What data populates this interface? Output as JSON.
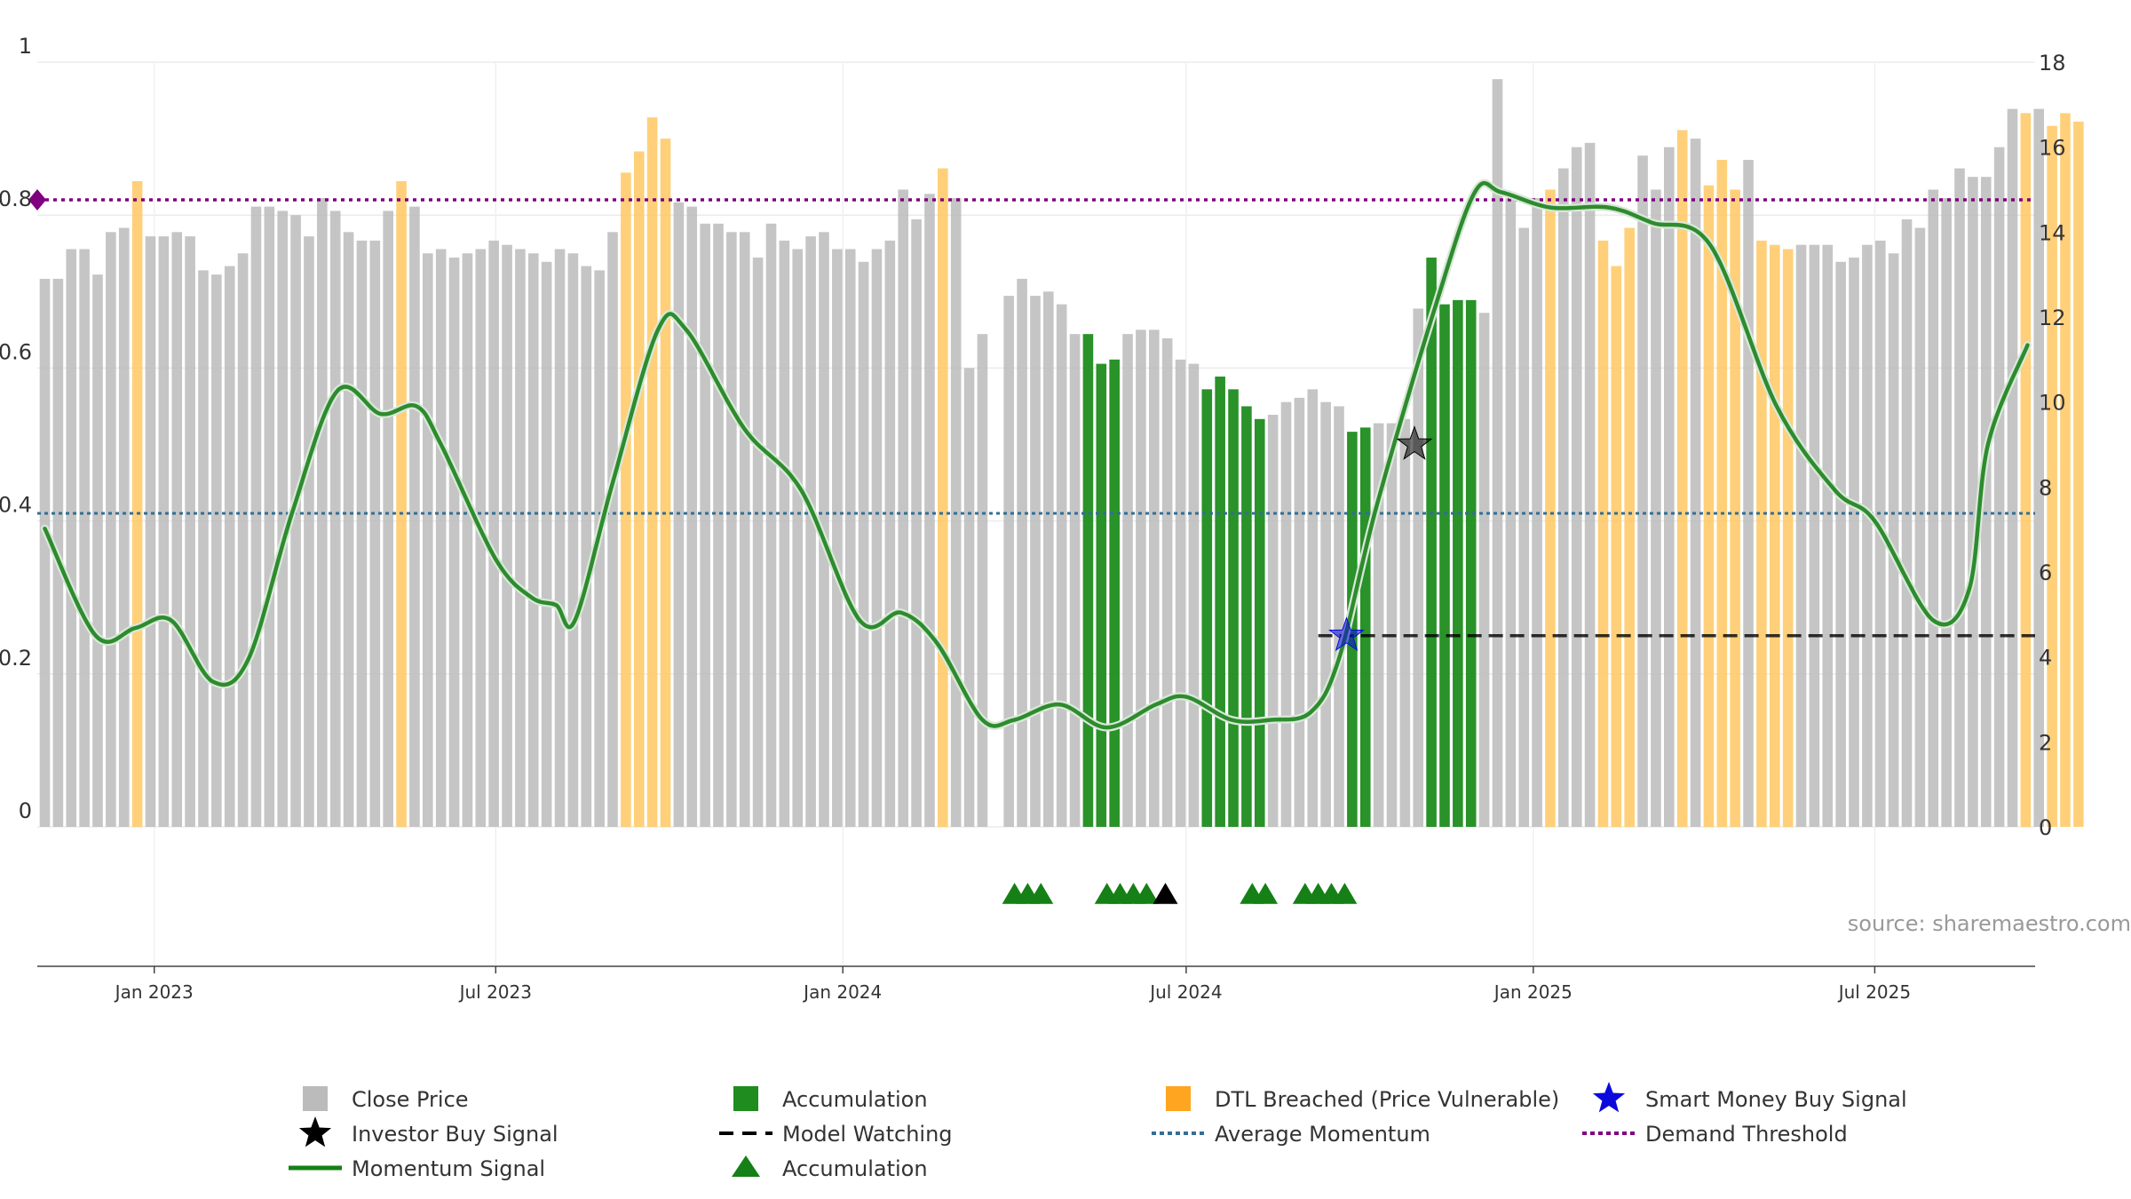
{
  "chart_data": {
    "type": "bar",
    "source": "source: sharemaestro.com",
    "left_axis": {
      "ticks": [
        0,
        0.2,
        0.4,
        0.6,
        0.8,
        1
      ],
      "tick_labels": [
        "0",
        "0.2",
        "0.4",
        "0.6",
        "0.8",
        "1"
      ],
      "ylim": [
        0,
        1
      ]
    },
    "right_axis": {
      "ticks": [
        0,
        2,
        4,
        6,
        8,
        10,
        12,
        14,
        16,
        18
      ],
      "tick_labels": [
        "0",
        "2",
        "4",
        "6",
        "8",
        "10",
        "12",
        "14",
        "16",
        "18"
      ],
      "ylim": [
        0,
        18
      ]
    },
    "x_axis": {
      "range": [
        "2022-10-31",
        "2025-09-24"
      ],
      "ticks": [
        "2023-01-01",
        "2023-07-01",
        "2024-01-01",
        "2024-07-01",
        "2025-01-01",
        "2025-07-01"
      ],
      "tick_labels": [
        "Jan 2023",
        "Jul 2023",
        "Jan 2024",
        "Jul 2024",
        "Jan 2025",
        "Jul 2025"
      ]
    },
    "grid": true,
    "legend_placement": "bottom",
    "legend": [
      {
        "label": "Close Price",
        "symbol": "square",
        "color": "#bbbbbb"
      },
      {
        "label": "Accumulation",
        "symbol": "square",
        "color": "#1e8c1e"
      },
      {
        "label": "DTL Breached (Price Vulnerable)",
        "symbol": "square",
        "color": "#ffa520"
      },
      {
        "label": "Smart Money Buy Signal",
        "symbol": "star",
        "color": "#0a0adc"
      },
      {
        "label": "Investor Buy Signal",
        "symbol": "star",
        "color": "#000000"
      },
      {
        "label": "Model Watching",
        "symbol": "dash",
        "color": "#000000"
      },
      {
        "label": "Average Momentum",
        "symbol": "dot",
        "color": "#336e96"
      },
      {
        "label": "Demand Threshold",
        "symbol": "dot",
        "color": "#800080"
      },
      {
        "label": "Momentum Signal",
        "symbol": "line",
        "color": "#158015"
      },
      {
        "label": "Accumulation",
        "symbol": "triangle",
        "color": "#158015"
      }
    ],
    "colors": {
      "close": "#bbbbbb",
      "accumulation": "#1e8c1e",
      "dtl": "#ffc862",
      "momentum": "#2e8b2e",
      "average": "#336e96",
      "threshold": "#800080",
      "watching": "#000000"
    },
    "price_bars": {
      "start_date": "2022-11-04",
      "interval_days": 7,
      "values": [
        12.9,
        12.9,
        13.6,
        13.6,
        13.0,
        14.0,
        14.1,
        15.2,
        13.9,
        13.9,
        14.0,
        13.9,
        13.1,
        13.0,
        13.2,
        13.5,
        14.6,
        14.6,
        14.5,
        14.4,
        13.9,
        14.8,
        14.5,
        14.0,
        13.8,
        13.8,
        14.5,
        15.2,
        14.6,
        13.5,
        13.6,
        13.4,
        13.5,
        13.6,
        13.8,
        13.7,
        13.6,
        13.5,
        13.3,
        13.6,
        13.5,
        13.2,
        13.1,
        14.0,
        15.4,
        15.9,
        16.7,
        16.2,
        14.7,
        14.6,
        14.2,
        14.2,
        14.0,
        14.0,
        13.4,
        14.2,
        13.8,
        13.6,
        13.9,
        14.0,
        13.6,
        13.6,
        13.3,
        13.6,
        13.8,
        15.0,
        14.3,
        14.9,
        15.5,
        14.8,
        10.8,
        11.6,
        0.0,
        12.5,
        12.9,
        12.5,
        12.6,
        12.3,
        11.6,
        11.6,
        10.9,
        11.0,
        11.6,
        11.7,
        11.7,
        11.5,
        11.0,
        10.9,
        10.3,
        10.6,
        10.3,
        9.9,
        9.6,
        9.7,
        10.0,
        10.1,
        10.3,
        10.0,
        9.9,
        9.3,
        9.4,
        9.5,
        9.5,
        9.6,
        12.2,
        13.4,
        12.3,
        12.4,
        12.4,
        12.1,
        17.6,
        14.8,
        14.1,
        14.8,
        15.0,
        15.5,
        16.0,
        16.1,
        13.8,
        13.2,
        14.1,
        15.8,
        15.0,
        16.0,
        16.4,
        16.2,
        15.1,
        15.7,
        15.0,
        15.7,
        13.8,
        13.7,
        13.6,
        13.7,
        13.7,
        13.7,
        13.3,
        13.4,
        13.7,
        13.8,
        13.5,
        14.3,
        14.1,
        15.0,
        14.8,
        15.5,
        15.3,
        15.3,
        16.0,
        16.9,
        16.8,
        16.9,
        16.5,
        16.8,
        16.6
      ],
      "highlight": [
        0,
        0,
        0,
        0,
        0,
        0,
        0,
        2,
        0,
        0,
        0,
        0,
        0,
        0,
        0,
        0,
        0,
        0,
        0,
        0,
        0,
        0,
        0,
        0,
        0,
        0,
        0,
        2,
        0,
        0,
        0,
        0,
        0,
        0,
        0,
        0,
        0,
        0,
        0,
        0,
        0,
        0,
        0,
        0,
        2,
        2,
        2,
        2,
        0,
        0,
        0,
        0,
        0,
        0,
        0,
        0,
        0,
        0,
        0,
        0,
        0,
        0,
        0,
        0,
        0,
        0,
        0,
        0,
        2,
        0,
        0,
        0,
        0,
        0,
        0,
        0,
        0,
        0,
        0,
        1,
        1,
        1,
        0,
        0,
        0,
        0,
        0,
        0,
        1,
        1,
        1,
        1,
        1,
        0,
        0,
        0,
        0,
        0,
        0,
        1,
        1,
        0,
        0,
        0,
        0,
        1,
        1,
        1,
        1,
        0,
        0,
        0,
        0,
        0,
        2,
        0,
        0,
        0,
        2,
        2,
        2,
        0,
        0,
        0,
        2,
        0,
        2,
        2,
        2,
        0,
        2,
        2,
        2,
        0,
        0,
        0,
        0,
        0,
        0,
        0,
        0,
        0,
        0,
        0,
        0,
        0,
        0,
        0,
        0,
        0,
        2,
        0,
        2,
        2,
        2,
        2,
        2,
        2,
        2,
        2
      ]
    },
    "momentum": [
      [
        "2022-11-04",
        0.39
      ],
      [
        "2022-12-01",
        0.25
      ],
      [
        "2022-12-22",
        0.26
      ],
      [
        "2023-01-10",
        0.27
      ],
      [
        "2023-02-01",
        0.19
      ],
      [
        "2023-02-20",
        0.22
      ],
      [
        "2023-03-15",
        0.41
      ],
      [
        "2023-04-08",
        0.57
      ],
      [
        "2023-05-01",
        0.54
      ],
      [
        "2023-05-20",
        0.55
      ],
      [
        "2023-06-02",
        0.5
      ],
      [
        "2023-07-01",
        0.35
      ],
      [
        "2023-07-20",
        0.3
      ],
      [
        "2023-08-02",
        0.29
      ],
      [
        "2023-08-12",
        0.27
      ],
      [
        "2023-09-01",
        0.45
      ],
      [
        "2023-09-25",
        0.65
      ],
      [
        "2023-10-10",
        0.65
      ],
      [
        "2023-11-10",
        0.52
      ],
      [
        "2023-12-10",
        0.44
      ],
      [
        "2024-01-10",
        0.27
      ],
      [
        "2024-02-01",
        0.28
      ],
      [
        "2024-02-20",
        0.24
      ],
      [
        "2024-03-15",
        0.14
      ],
      [
        "2024-04-01",
        0.14
      ],
      [
        "2024-04-25",
        0.16
      ],
      [
        "2024-05-20",
        0.13
      ],
      [
        "2024-06-15",
        0.16
      ],
      [
        "2024-07-01",
        0.17
      ],
      [
        "2024-07-25",
        0.14
      ],
      [
        "2024-08-15",
        0.14
      ],
      [
        "2024-09-05",
        0.15
      ],
      [
        "2024-09-20",
        0.22
      ],
      [
        "2024-10-10",
        0.42
      ],
      [
        "2024-11-10",
        0.68
      ],
      [
        "2024-12-01",
        0.83
      ],
      [
        "2024-12-15",
        0.83
      ],
      [
        "2025-01-10",
        0.81
      ],
      [
        "2025-02-10",
        0.81
      ],
      [
        "2025-03-05",
        0.79
      ],
      [
        "2025-04-05",
        0.76
      ],
      [
        "2025-05-10",
        0.55
      ],
      [
        "2025-06-10",
        0.44
      ],
      [
        "2025-07-01",
        0.4
      ],
      [
        "2025-08-01",
        0.27
      ],
      [
        "2025-08-20",
        0.31
      ],
      [
        "2025-08-30",
        0.5
      ],
      [
        "2025-09-20",
        0.63
      ]
    ],
    "average_momentum": 0.41,
    "demand_threshold": 0.82,
    "model_watching": {
      "value": 0.25,
      "from": "2024-09-09",
      "to": "2025-09-24"
    },
    "smart_money_buy_signal": [
      [
        "2024-09-24",
        0.25
      ]
    ],
    "investor_buy_signal": [
      [
        "2024-10-30",
        0.5
      ]
    ],
    "accumulation_triangles": {
      "green": [
        "2024-04-01",
        "2024-04-08",
        "2024-04-15",
        "2024-05-20",
        "2024-05-27",
        "2024-06-03",
        "2024-06-10",
        "2024-08-05",
        "2024-08-12",
        "2024-09-02",
        "2024-09-09",
        "2024-09-16",
        "2024-09-23"
      ],
      "black": [
        "2024-06-20"
      ]
    }
  }
}
